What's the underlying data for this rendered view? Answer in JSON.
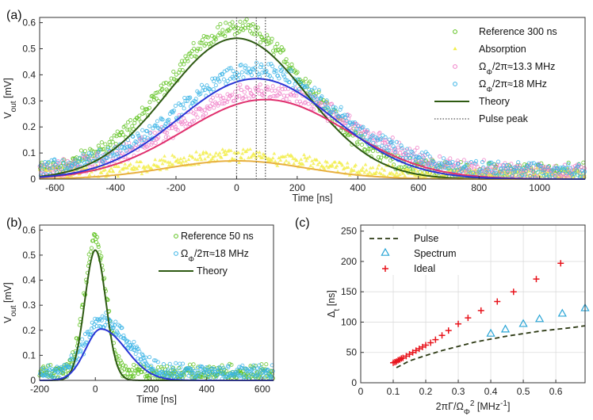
{
  "chart_data": [
    {
      "panel": "(a)",
      "type": "scatter",
      "xlabel": "Time [ns]",
      "ylabel": "V_out [mV]",
      "ylabel_main": "V",
      "ylabel_sub": "out",
      "ylabel_unit": "[mV]",
      "xlim": [
        -650,
        1150
      ],
      "ylim": [
        0,
        0.62
      ],
      "xticks": [
        -600,
        -400,
        -200,
        0,
        200,
        400,
        600,
        800,
        1000
      ],
      "yticks": [
        0,
        0.1,
        0.2,
        0.3,
        0.4,
        0.5,
        0.6
      ],
      "series": [
        {
          "name": "Reference 300 ns",
          "kind": "markers",
          "marker": "circle",
          "color": "#5ec21e",
          "peak": 0.55,
          "center": 0,
          "width": 230,
          "base": 0.03,
          "noise": 0.025
        },
        {
          "name": "Absorption",
          "kind": "markers",
          "marker": "triangle",
          "color": "#f2ee4a",
          "peak": 0.07,
          "center": 0,
          "width": 230,
          "base": 0.02,
          "noise": 0.02
        },
        {
          "name": "Ω_Φ/2π≈13.3 MHz",
          "kind": "markers",
          "marker": "circle",
          "color": "#f07fc8",
          "peak": 0.31,
          "center": 95,
          "width": 270,
          "base": 0.03,
          "noise": 0.025
        },
        {
          "name": "Ω_Φ/2π≈18 MHz",
          "kind": "markers",
          "marker": "circle",
          "color": "#3ab4e6",
          "peak": 0.39,
          "center": 65,
          "width": 255,
          "base": 0.03,
          "noise": 0.025
        },
        {
          "name": "Theory",
          "kind": "line",
          "color": "#2e5a12",
          "peak": 0.54,
          "center": 0,
          "width": 230
        },
        {
          "name": "",
          "kind": "line",
          "color": "#e8b040",
          "peak": 0.07,
          "center": 0,
          "width": 230
        },
        {
          "name": "",
          "kind": "line",
          "color": "#e0306e",
          "peak": 0.305,
          "center": 95,
          "width": 270
        },
        {
          "name": "",
          "kind": "line",
          "color": "#2a35d6",
          "peak": 0.385,
          "center": 65,
          "width": 255
        },
        {
          "name": "Pulse peak",
          "kind": "vlines",
          "color": "#555555",
          "x": [
            0,
            65,
            95
          ]
        }
      ],
      "legend": {
        "position": "top-right",
        "entries": [
          {
            "label": "Reference 300 ns",
            "text": "Reference 300 ns"
          },
          {
            "label": "Absorption",
            "text": "Absorption"
          },
          {
            "label": "Ω_Φ/2π≈13.3 MHz",
            "main": "Ω",
            "sub": "Φ",
            "rest": "/2π≈13.3 MHz"
          },
          {
            "label": "Ω_Φ/2π≈18 MHz",
            "main": "Ω",
            "sub": "Φ",
            "rest": "/2π≈18 MHz"
          },
          {
            "label": "Theory",
            "text": "Theory"
          },
          {
            "label": "Pulse peak",
            "text": "Pulse peak"
          }
        ]
      }
    },
    {
      "panel": "(b)",
      "type": "scatter",
      "xlabel": "Time [ns]",
      "ylabel": "V_out [mV]",
      "ylabel_main": "V",
      "ylabel_sub": "out",
      "ylabel_unit": "[mV]",
      "xlim": [
        -200,
        640
      ],
      "ylim": [
        0,
        0.62
      ],
      "xticks": [
        -200,
        0,
        200,
        400,
        600
      ],
      "yticks": [
        0,
        0.1,
        0.2,
        0.3,
        0.4,
        0.5,
        0.6
      ],
      "series": [
        {
          "name": "Reference 50 ns",
          "kind": "markers",
          "marker": "circle",
          "color": "#5ec21e",
          "peak": 0.54,
          "center": 0,
          "width": 38,
          "base": 0.03,
          "noise": 0.025
        },
        {
          "name": "Ω_Φ/2π≈18 MHz",
          "kind": "markers",
          "marker": "circle",
          "color": "#3ab4e6",
          "peak": 0.21,
          "center": 20,
          "width": 55,
          "tail": 90,
          "base": 0.03,
          "noise": 0.025
        },
        {
          "name": "Theory",
          "kind": "line",
          "color": "#2e5a12",
          "peak": 0.52,
          "center": 0,
          "width": 38
        },
        {
          "name": "",
          "kind": "line",
          "color": "#2a35d6",
          "peak": 0.205,
          "center": 20,
          "width": 55,
          "tail": 90
        }
      ],
      "legend": {
        "position": "top-right",
        "entries": [
          {
            "label": "Reference 50 ns",
            "text": "Reference 50 ns"
          },
          {
            "label": "Ω_Φ/2π≈18 MHz",
            "main": "Ω",
            "sub": "Φ",
            "rest": "/2π≈18 MHz"
          },
          {
            "label": "Theory",
            "text": "Theory"
          }
        ]
      }
    },
    {
      "panel": "(c)",
      "type": "scatter",
      "xlabel": "2πΓ/Ω_Φ^2 [MHz^-1]",
      "xlabel_parts": {
        "a": "2πΓ/Ω",
        "sub": "Φ",
        "sup": "2",
        "b": " [MHz",
        "sup2": "-1",
        "c": "]"
      },
      "ylabel": "Δ_t [ns]",
      "ylabel_main": "Δ",
      "ylabel_sub": "t",
      "ylabel_unit": "[ns]",
      "xlim": [
        0,
        0.69
      ],
      "ylim": [
        0,
        260
      ],
      "xticks": [
        0,
        0.1,
        0.2,
        0.3,
        0.4,
        0.5,
        0.6
      ],
      "yticks": [
        0,
        50,
        100,
        150,
        200,
        250
      ],
      "grid": true,
      "series": [
        {
          "name": "Pulse",
          "kind": "dashed-line",
          "color": "#2d3a14",
          "x": [
            0.11,
            0.15,
            0.2,
            0.25,
            0.3,
            0.35,
            0.4,
            0.45,
            0.5,
            0.55,
            0.6,
            0.65,
            0.69
          ],
          "y": [
            25,
            36,
            45,
            53,
            60,
            67,
            72,
            77,
            81,
            85,
            88,
            91,
            94
          ]
        },
        {
          "name": "Spectrum",
          "kind": "markers",
          "marker": "triangle-open",
          "color": "#2aa5d6",
          "x": [
            0.4,
            0.445,
            0.5,
            0.55,
            0.62,
            0.69
          ],
          "y": [
            81,
            88,
            97,
            105,
            114,
            123
          ]
        },
        {
          "name": "Ideal",
          "kind": "markers",
          "marker": "plus",
          "color": "#e8141c",
          "x": [
            0.1,
            0.105,
            0.11,
            0.115,
            0.12,
            0.125,
            0.13,
            0.14,
            0.15,
            0.16,
            0.17,
            0.18,
            0.19,
            0.2,
            0.215,
            0.23,
            0.25,
            0.27,
            0.3,
            0.33,
            0.37,
            0.42,
            0.47,
            0.54,
            0.615
          ],
          "y": [
            33,
            34,
            35,
            37,
            38,
            40,
            41,
            44,
            47,
            50,
            53,
            56,
            59,
            62,
            66,
            71,
            78,
            86,
            97,
            107,
            119,
            134,
            150,
            171,
            197
          ]
        }
      ],
      "legend": {
        "position": "top-left",
        "entries": [
          {
            "label": "Pulse",
            "text": "Pulse"
          },
          {
            "label": "Spectrum",
            "text": "Spectrum"
          },
          {
            "label": "Ideal",
            "text": "Ideal"
          }
        ]
      }
    }
  ]
}
